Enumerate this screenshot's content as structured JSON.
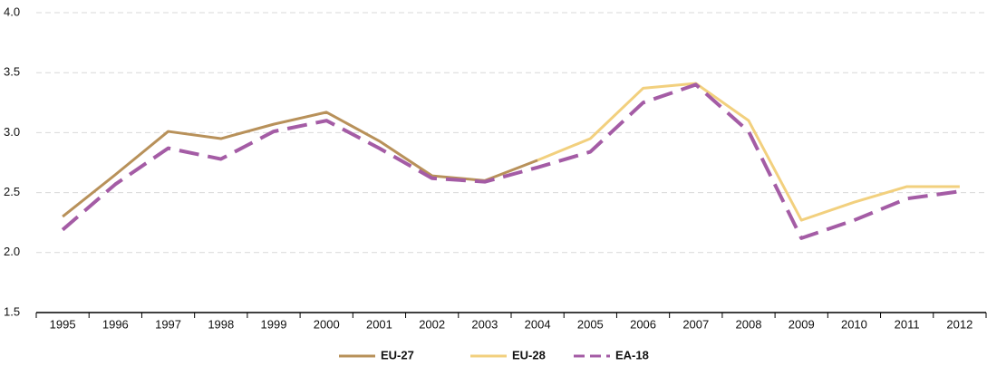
{
  "chart_data": {
    "type": "line",
    "categories": [
      "1995",
      "1996",
      "1997",
      "1998",
      "1999",
      "2000",
      "2001",
      "2002",
      "2003",
      "2004",
      "2005",
      "2006",
      "2007",
      "2008",
      "2009",
      "2010",
      "2011",
      "2012"
    ],
    "series": [
      {
        "name": "EU-27",
        "color": "#b8915a",
        "dashed": false,
        "values": [
          2.3,
          2.65,
          3.01,
          2.95,
          3.07,
          3.17,
          2.93,
          2.64,
          2.6,
          2.77,
          null,
          null,
          null,
          null,
          null,
          null,
          null,
          null
        ]
      },
      {
        "name": "EU-28",
        "color": "#f2d07e",
        "dashed": false,
        "values": [
          null,
          null,
          null,
          null,
          null,
          null,
          null,
          null,
          null,
          2.77,
          2.95,
          3.37,
          3.41,
          3.1,
          2.27,
          2.42,
          2.55,
          2.55
        ]
      },
      {
        "name": "EA-18",
        "color": "#a45ca5",
        "dashed": true,
        "values": [
          2.19,
          2.57,
          2.87,
          2.78,
          3.01,
          3.1,
          2.87,
          2.62,
          2.59,
          2.71,
          2.84,
          3.25,
          3.4,
          3.01,
          2.12,
          2.27,
          2.45,
          2.51
        ]
      }
    ],
    "ylim": [
      1.5,
      4.0
    ],
    "yticks": [
      1.5,
      {
        "value": 2,
        "label": "2.0"
      },
      2.5,
      {
        "value": 3,
        "label": "3.0"
      },
      3.5,
      {
        "value": 4,
        "label": "4.0"
      }
    ],
    "grid": true,
    "legend": "bottom"
  }
}
